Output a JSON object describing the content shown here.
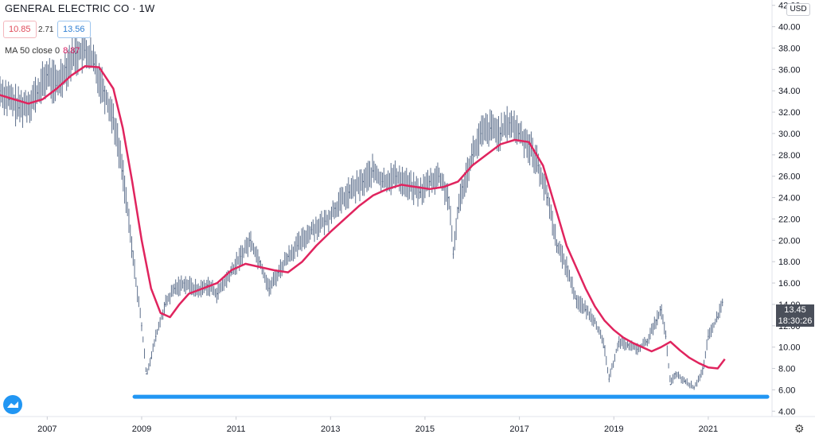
{
  "title": "GENERAL ELECTRIC CO · 1W",
  "legend": {
    "low_value": "10.85",
    "change_value": "2.71",
    "high_value": "13.56",
    "ma_label": "MA 50 close 0",
    "ma_value": "8.87"
  },
  "currency": "USD",
  "last_price": "13.45",
  "countdown": "18:30:26",
  "colors": {
    "price_bars": "#5d6f8c",
    "moving_average": "#e0245e",
    "support_line": "#2196f3",
    "axis_text": "#131722"
  },
  "icons": {
    "logo": "tradingview-logo-icon",
    "settings": "gear-icon"
  },
  "chart_data": {
    "type": "line",
    "series": [
      {
        "name": "",
        "x": [
          2006.0,
          2006.2,
          2006.4,
          2006.6,
          2006.8,
          2007.0,
          2007.2,
          2007.4,
          2007.6,
          2007.8,
          2008.0,
          2008.2,
          2008.4,
          2008.6,
          2008.8,
          2009.0,
          2009.1,
          2009.2,
          2009.3,
          2009.5,
          2009.7,
          2009.9,
          2010.2,
          2010.4,
          2010.6,
          2010.9,
          2011.1,
          2011.3,
          2011.5,
          2011.7,
          2011.9,
          2012.1,
          2012.3,
          2012.6,
          2012.9,
          2013.1,
          2013.4,
          2013.7,
          2013.9,
          2014.1,
          2014.4,
          2014.7,
          2014.9,
          2015.1,
          2015.3,
          2015.5,
          2015.6,
          2015.7,
          2015.8,
          2016.0,
          2016.2,
          2016.4,
          2016.6,
          2016.8,
          2017.0,
          2017.2,
          2017.4,
          2017.6,
          2017.8,
          2018.0,
          2018.2,
          2018.4,
          2018.6,
          2018.8,
          2018.9,
          2019.1,
          2019.3,
          2019.5,
          2019.7,
          2019.9,
          2020.0,
          2020.1,
          2020.2,
          2020.3,
          2020.5,
          2020.7,
          2020.9,
          2021.0,
          2021.2,
          2021.3
        ],
        "y": [
          34,
          33.2,
          32.4,
          32.8,
          33.8,
          35.5,
          34.5,
          36.2,
          37.5,
          37.8,
          36.5,
          34,
          31.5,
          26.5,
          19,
          12,
          7.5,
          9,
          11,
          14,
          15.5,
          16,
          15.3,
          15.8,
          15,
          17,
          18.5,
          20,
          18,
          15.5,
          17,
          18.5,
          19.5,
          21,
          21.8,
          23,
          24.5,
          25.5,
          26.5,
          25.5,
          26,
          25,
          24.5,
          25.5,
          26,
          24,
          18.7,
          23,
          25,
          28,
          30,
          30.5,
          30,
          31,
          30,
          29,
          27,
          24,
          19.5,
          17.5,
          14.5,
          13.5,
          12.5,
          10,
          7,
          10.5,
          10.2,
          9.8,
          10.5,
          12.5,
          13.5,
          11,
          6.5,
          7.5,
          6.8,
          6.2,
          8,
          11,
          12.8,
          14.2
        ]
      },
      {
        "name": "MA 50 close 0",
        "x": [
          2006.0,
          2006.3,
          2006.6,
          2006.9,
          2007.2,
          2007.5,
          2007.8,
          2008.1,
          2008.4,
          2008.6,
          2008.8,
          2009.0,
          2009.2,
          2009.4,
          2009.6,
          2009.8,
          2010.0,
          2010.3,
          2010.6,
          2010.9,
          2011.2,
          2011.5,
          2011.8,
          2012.1,
          2012.4,
          2012.7,
          2013.0,
          2013.3,
          2013.6,
          2013.9,
          2014.2,
          2014.5,
          2014.8,
          2015.1,
          2015.4,
          2015.7,
          2016.0,
          2016.3,
          2016.6,
          2016.9,
          2017.2,
          2017.5,
          2017.8,
          2018.0,
          2018.2,
          2018.4,
          2018.6,
          2018.8,
          2019.0,
          2019.2,
          2019.4,
          2019.6,
          2019.8,
          2020.0,
          2020.2,
          2020.4,
          2020.6,
          2020.8,
          2021.0,
          2021.2,
          2021.35
        ],
        "y": [
          33.6,
          33.2,
          32.8,
          33.2,
          34.2,
          35.4,
          36.3,
          36.2,
          34.2,
          30.5,
          25.5,
          20,
          15.5,
          13.2,
          12.8,
          14,
          15,
          15.5,
          16,
          17.2,
          17.8,
          17.5,
          17.2,
          17,
          18,
          19.5,
          20.8,
          22,
          23.2,
          24.2,
          24.8,
          25.2,
          25,
          24.8,
          25,
          25.5,
          27,
          28,
          29,
          29.4,
          29.2,
          27,
          22.5,
          19.5,
          17.5,
          15.5,
          13.8,
          12.5,
          11.6,
          10.9,
          10.4,
          10,
          9.6,
          10,
          10.5,
          9.7,
          9,
          8.5,
          8.1,
          8.0,
          8.87
        ]
      }
    ],
    "support_level": 5.35,
    "support_range": [
      2008.85,
      2022.25
    ],
    "xlim": [
      2006.0,
      2022.35
    ],
    "ylim": [
      3.5,
      42.5
    ],
    "y_ticks": [
      4,
      6,
      8,
      10,
      12,
      14,
      16,
      18,
      20,
      22,
      24,
      26,
      28,
      30,
      32,
      34,
      36,
      38,
      40,
      42
    ],
    "x_ticks": [
      2007,
      2009,
      2011,
      2013,
      2015,
      2017,
      2019,
      2021
    ],
    "grid": false,
    "legend_position": "top-left"
  }
}
